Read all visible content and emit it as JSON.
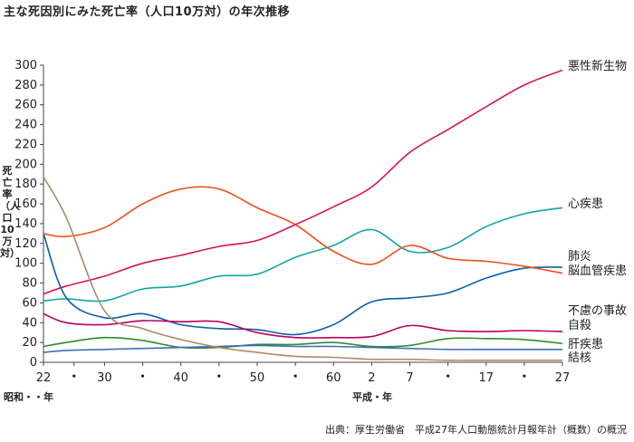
{
  "title": "主な死因別にみた死亡率（人口10万対）の年次推移",
  "ylabel": "死亡率（人口10万対）",
  "source": "出典：厚生労働省　平成27年人口動態統計月報年計（概数）の概況",
  "chart_data": {
    "type": "line",
    "x": [
      1947,
      1950,
      1955,
      1960,
      1965,
      1970,
      1975,
      1980,
      1985,
      1990,
      1995,
      2000,
      2005,
      2010,
      2015
    ],
    "xticks": [
      {
        "year": 1947,
        "label": "22"
      },
      {
        "year": 1951,
        "label": "・"
      },
      {
        "year": 1955,
        "label": "30"
      },
      {
        "year": 1960,
        "label": "・"
      },
      {
        "year": 1965,
        "label": "40"
      },
      {
        "year": 1970,
        "label": "・"
      },
      {
        "year": 1975,
        "label": "50"
      },
      {
        "year": 1980,
        "label": "・"
      },
      {
        "year": 1985,
        "label": "60"
      },
      {
        "year": 1990,
        "label": "2"
      },
      {
        "year": 1995,
        "label": "7"
      },
      {
        "year": 2000,
        "label": "・"
      },
      {
        "year": 2005,
        "label": "17"
      },
      {
        "year": 2010,
        "label": "・"
      },
      {
        "year": 2015,
        "label": "27"
      }
    ],
    "era_labels": {
      "showa": "昭和・・年",
      "heisei": "平成・年"
    },
    "ylim": [
      0,
      300
    ],
    "yticks": [
      0,
      20,
      40,
      60,
      80,
      100,
      120,
      140,
      160,
      180,
      200,
      220,
      240,
      260,
      280,
      300
    ],
    "grid": false,
    "series": [
      {
        "name": "悪性新生物",
        "color": "#d4145a",
        "values": [
          69,
          77,
          87,
          100,
          108,
          117,
          123,
          139,
          157,
          177,
          212,
          235,
          258,
          280,
          295
        ]
      },
      {
        "name": "心疾患",
        "color": "#12a6a4",
        "values": [
          62,
          64,
          62,
          74,
          77,
          87,
          89,
          106,
          118,
          134,
          112,
          116,
          137,
          150,
          156
        ]
      },
      {
        "name": "肺炎",
        "color": "#0b5fa5",
        "values": [
          130,
          65,
          45,
          49,
          38,
          34,
          33,
          28,
          38,
          61,
          65,
          70,
          85,
          95,
          96
        ]
      },
      {
        "name": "脳血管疾患",
        "color": "#e8531e",
        "values": [
          130,
          127,
          136,
          160,
          175,
          175,
          156,
          139,
          112,
          99,
          118,
          105,
          102,
          97,
          90
        ]
      },
      {
        "name": "不慮の事故",
        "color": "#b8005c",
        "values": [
          49,
          40,
          38,
          42,
          41,
          41,
          30,
          25,
          25,
          26,
          37,
          32,
          31,
          32,
          31
        ]
      },
      {
        "name": "自殺",
        "color": "#2e8b2e",
        "values": [
          16,
          20,
          25,
          22,
          15,
          15,
          18,
          18,
          20,
          16,
          17,
          24,
          24,
          23,
          19
        ]
      },
      {
        "name": "肝疾患",
        "color": "#3d6fb6",
        "values": [
          10,
          12,
          13,
          14,
          15,
          16,
          17,
          16,
          16,
          15,
          14,
          13,
          13,
          13,
          13
        ]
      },
      {
        "name": "結核",
        "color": "#b08968",
        "values": [
          187,
          146,
          52,
          34,
          23,
          15,
          10,
          6,
          5,
          3,
          3,
          2,
          2,
          2,
          2
        ]
      }
    ]
  }
}
